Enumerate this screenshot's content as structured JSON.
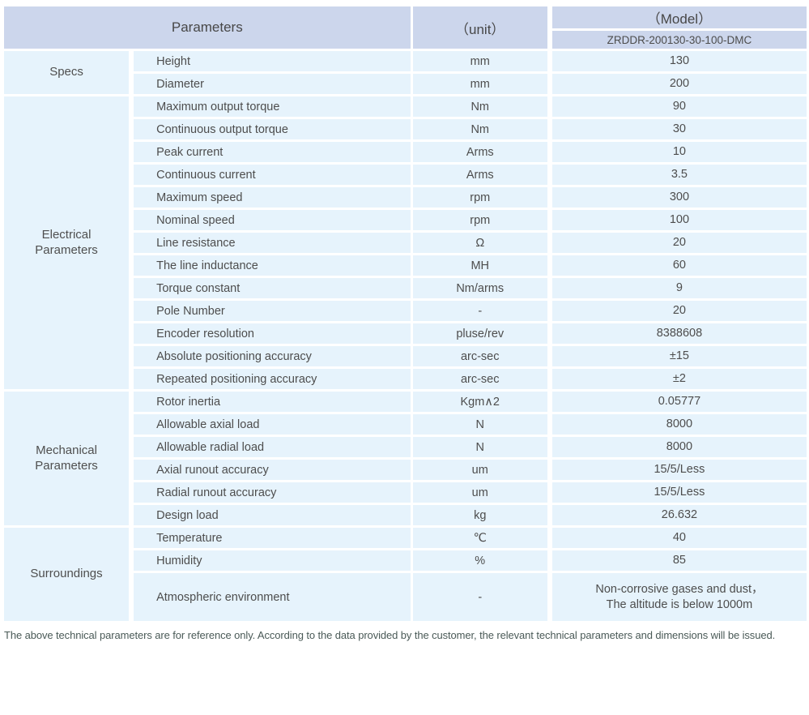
{
  "colors": {
    "header_bg": "#ccd6ec",
    "cell_bg": "#e6f3fc",
    "body_text": "#4d4d4d",
    "note_text": "#4a5a57",
    "grid_lines": "#ffffff"
  },
  "header": {
    "parameters": "Parameters",
    "unit": "（unit）",
    "model": "（Model）",
    "model_value": "ZRDDR-200130-30-100-DMC"
  },
  "sections": [
    {
      "name": "Specs",
      "rows": [
        {
          "parameter": "Height",
          "unit": "mm",
          "value": "130"
        },
        {
          "parameter": "Diameter",
          "unit": "mm",
          "value": "200"
        }
      ]
    },
    {
      "name": "Electrical Parameters",
      "rows": [
        {
          "parameter": "Maximum output torque",
          "unit": "Nm",
          "value": "90"
        },
        {
          "parameter": "Continuous output torque",
          "unit": "Nm",
          "value": "30"
        },
        {
          "parameter": "Peak current",
          "unit": "Arms",
          "value": "10"
        },
        {
          "parameter": "Continuous current",
          "unit": "Arms",
          "value": "3.5"
        },
        {
          "parameter": "Maximum speed",
          "unit": "rpm",
          "value": "300"
        },
        {
          "parameter": "Nominal speed",
          "unit": "rpm",
          "value": "100"
        },
        {
          "parameter": "Line resistance",
          "unit": "Ω",
          "value": "20"
        },
        {
          "parameter": "The line inductance",
          "unit": "MH",
          "value": "60"
        },
        {
          "parameter": "Torque constant",
          "unit": "Nm/arms",
          "value": "9"
        },
        {
          "parameter": "Pole Number",
          "unit": "-",
          "value": "20"
        },
        {
          "parameter": "Encoder resolution",
          "unit": "pluse/rev",
          "value": "8388608"
        },
        {
          "parameter": "Absolute positioning accuracy",
          "unit": "arc-sec",
          "value": "±15"
        },
        {
          "parameter": "Repeated positioning accuracy",
          "unit": "arc-sec",
          "value": "±2"
        }
      ]
    },
    {
      "name": "Mechanical Parameters",
      "rows": [
        {
          "parameter": "Rotor inertia",
          "unit": "Kgm∧2",
          "value": "0.05777"
        },
        {
          "parameter": "Allowable axial load",
          "unit": "N",
          "value": "8000"
        },
        {
          "parameter": "Allowable radial load",
          "unit": "N",
          "value": "8000"
        },
        {
          "parameter": "Axial runout accuracy",
          "unit": "um",
          "value": "15/5/Less"
        },
        {
          "parameter": "Radial runout accuracy",
          "unit": "um",
          "value": "15/5/Less"
        },
        {
          "parameter": "Design load",
          "unit": "kg",
          "value": "26.632"
        }
      ]
    },
    {
      "name": "Surroundings",
      "rows": [
        {
          "parameter": "Temperature",
          "unit": "℃",
          "value": "40"
        },
        {
          "parameter": "Humidity",
          "unit": "%",
          "value": "85"
        },
        {
          "parameter": "Atmospheric environment",
          "unit": "-",
          "value": "Non-corrosive gases and dust，\nThe altitude is below 1000m",
          "tall": true
        }
      ]
    }
  ],
  "footer_note": "The above technical parameters are for reference only. According to the data provided by the customer, the relevant technical parameters and dimensions will be issued."
}
